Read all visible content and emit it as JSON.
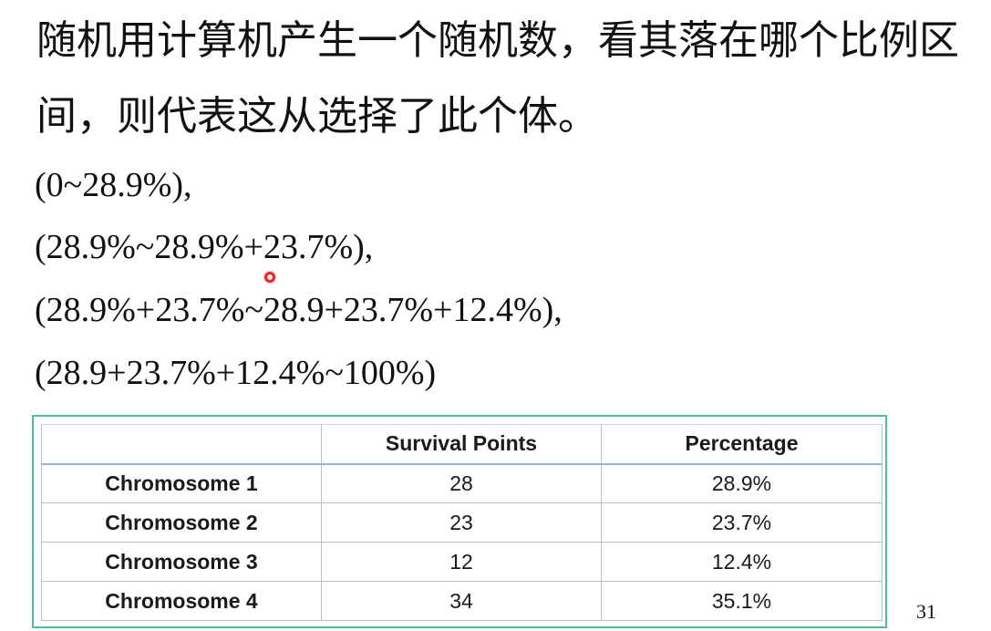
{
  "slide": {
    "body_text": {
      "line_1": "随机用计算机产生一个随机数，看其落在哪个比例区",
      "line_2": "间，则代表这从选择了此个体。"
    },
    "intervals": [
      "(0~28.9%),",
      "(28.9%~28.9%+23.7%),",
      "(28.9%+23.7%~28.9+23.7%+12.4%),",
      "(28.9+23.7%+12.4%~100%)"
    ],
    "table": {
      "headers": [
        "",
        "Survival Points",
        "Percentage"
      ],
      "rows": [
        [
          "Chromosome 1",
          "28",
          "28.9%"
        ],
        [
          "Chromosome 2",
          "23",
          "23.7%"
        ],
        [
          "Chromosome 3",
          "12",
          "12.4%"
        ],
        [
          "Chromosome 4",
          "34",
          "35.1%"
        ]
      ]
    },
    "page_number": "31",
    "pointer": {
      "icon": "laser-pointer-icon"
    }
  },
  "colors": {
    "text": "#111111",
    "table_frame": "#4dbfa6",
    "header_rule": "#8eb4e3",
    "grid": "#bfbfbf",
    "pointer": "#e3262d"
  }
}
